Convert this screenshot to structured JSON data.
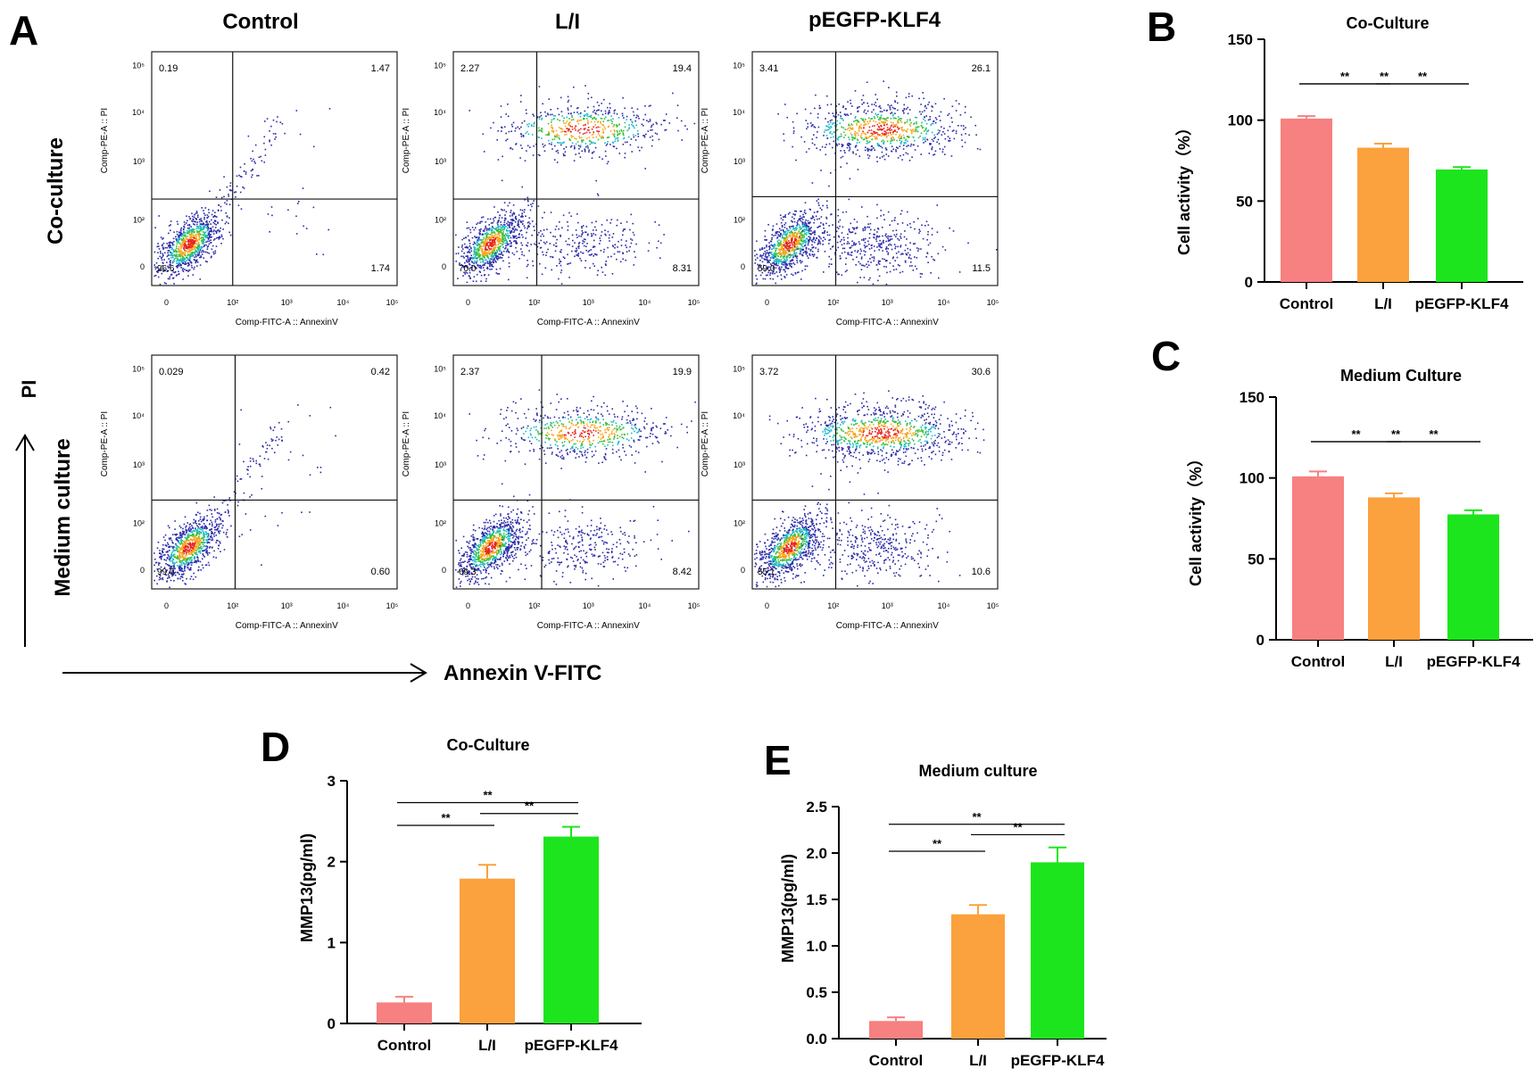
{
  "panel_a": {
    "letter": "A",
    "column_titles": [
      "Control",
      "L/I",
      "pEGFP-KLF4"
    ],
    "row_titles": [
      "Co-culture",
      "Medium culture"
    ],
    "y_axis_title": "PI",
    "x_axis_title": "Annexin V-FITC",
    "plot_xlabel": "Comp-FITC-A :: AnnexinV",
    "plot_ylabel": "Comp-PE-A :: PI",
    "tick_labels": [
      "0",
      "10²",
      "10³",
      "10⁴",
      "10⁵"
    ],
    "plots": [
      {
        "row": 0,
        "col": 0,
        "q_upper_left": "0.19",
        "q_upper_right": "1.47",
        "q_lower_left": "96.6",
        "q_lower_right": "1.74"
      },
      {
        "row": 0,
        "col": 1,
        "q_upper_left": "2.27",
        "q_upper_right": "19.4",
        "q_lower_left": "70.0",
        "q_lower_right": "8.31"
      },
      {
        "row": 0,
        "col": 2,
        "q_upper_left": "3.41",
        "q_upper_right": "26.1",
        "q_lower_left": "59.0",
        "q_lower_right": "11.5"
      },
      {
        "row": 1,
        "col": 0,
        "q_upper_left": "0.029",
        "q_upper_right": "0.42",
        "q_lower_left": "99.0",
        "q_lower_right": "0.60"
      },
      {
        "row": 1,
        "col": 1,
        "q_upper_left": "2.37",
        "q_upper_right": "19.9",
        "q_lower_left": "69.3",
        "q_lower_right": "8.42"
      },
      {
        "row": 1,
        "col": 2,
        "q_upper_left": "3.72",
        "q_upper_right": "30.6",
        "q_lower_left": "55.1",
        "q_lower_right": "10.6"
      }
    ]
  },
  "colors": {
    "control": "#f78080",
    "li": "#fba13d",
    "klf4": "#1de51d",
    "scatter_blue": "#2b2ba8",
    "scatter_hot": "#e8251c"
  },
  "chart_data": [
    {
      "id": "B",
      "letter": "B",
      "type": "bar",
      "title": "Co-Culture",
      "ylabel": "Cell activity（%）",
      "categories": [
        "Control",
        "L/I",
        "pEGFP-KLF4"
      ],
      "values": [
        101,
        83,
        69.5
      ],
      "errors": [
        1.5,
        2.5,
        1.5
      ],
      "ylim": [
        0,
        150
      ],
      "yticks": [
        0,
        50,
        100,
        150
      ],
      "ytick_labels": [
        "0",
        "50",
        "100",
        "150"
      ],
      "significance": [
        {
          "from": 0,
          "to": 1,
          "label": "**"
        },
        {
          "from": 1,
          "to": 2,
          "label": "**"
        },
        {
          "from": 0,
          "to": 2,
          "label": "**"
        }
      ]
    },
    {
      "id": "C",
      "letter": "C",
      "type": "bar",
      "title": "Medium Culture",
      "ylabel": "Cell activity（%）",
      "categories": [
        "Control",
        "L/I",
        "pEGFP-KLF4"
      ],
      "values": [
        101,
        88,
        77.5
      ],
      "errors": [
        3,
        2.5,
        2.5
      ],
      "ylim": [
        0,
        150
      ],
      "yticks": [
        0,
        50,
        100,
        150
      ],
      "ytick_labels": [
        "0",
        "50",
        "100",
        "150"
      ],
      "significance": [
        {
          "from": 0,
          "to": 1,
          "label": "**"
        },
        {
          "from": 1,
          "to": 2,
          "label": "**"
        },
        {
          "from": 0,
          "to": 2,
          "label": "**"
        }
      ]
    },
    {
      "id": "D",
      "letter": "D",
      "type": "bar",
      "title": "Co-Culture",
      "ylabel": "MMP13(pg/ml)",
      "categories": [
        "Control",
        "L/I",
        "pEGFP-KLF4"
      ],
      "values": [
        0.26,
        1.79,
        2.31
      ],
      "errors": [
        0.07,
        0.17,
        0.12
      ],
      "ylim": [
        0,
        3
      ],
      "yticks": [
        0,
        1,
        2,
        3
      ],
      "ytick_labels": [
        "0",
        "1",
        "2",
        "3"
      ],
      "significance": [
        {
          "from": 0,
          "to": 1,
          "label": "**"
        },
        {
          "from": 1,
          "to": 2,
          "label": "**"
        },
        {
          "from": 0,
          "to": 2,
          "label": "**"
        }
      ]
    },
    {
      "id": "E",
      "letter": "E",
      "type": "bar",
      "title": "Medium culture",
      "ylabel": "MMP13(pg/ml)",
      "categories": [
        "Control",
        "L/I",
        "pEGFP-KLF4"
      ],
      "values": [
        0.19,
        1.34,
        1.9
      ],
      "errors": [
        0.04,
        0.1,
        0.16
      ],
      "ylim": [
        0,
        2.5
      ],
      "yticks": [
        0,
        0.5,
        1,
        1.5,
        2,
        2.5
      ],
      "ytick_labels": [
        "0.0",
        "0.5",
        "1.0",
        "1.5",
        "2.0",
        "2.5"
      ],
      "significance": [
        {
          "from": 0,
          "to": 1,
          "label": "**"
        },
        {
          "from": 1,
          "to": 2,
          "label": "**"
        },
        {
          "from": 0,
          "to": 2,
          "label": "**"
        }
      ]
    }
  ]
}
